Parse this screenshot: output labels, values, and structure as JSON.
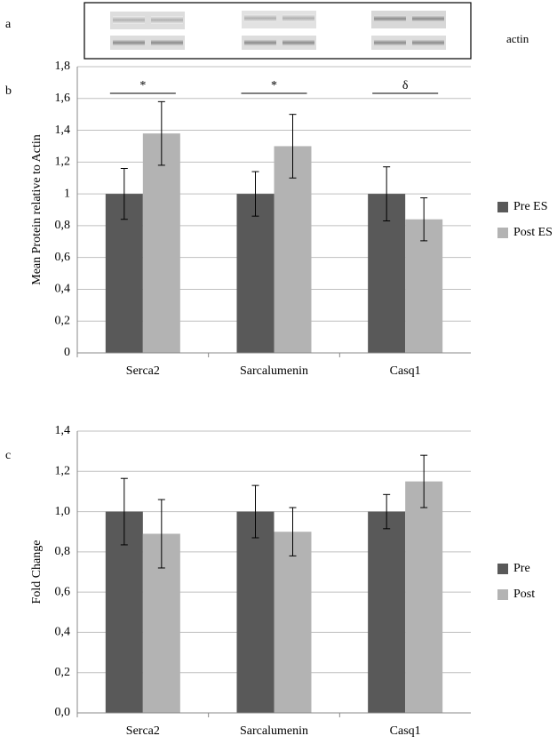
{
  "panel_a": {
    "label": "a",
    "annotation": "actin"
  },
  "chart_data": [
    {
      "type": "bar",
      "label": "b",
      "y_label": "Mean Protein relative to Actin",
      "categories": [
        "Serca2",
        "Sarcalumenin",
        "Casq1"
      ],
      "annotations": [
        "*",
        "*",
        "δ"
      ],
      "series": [
        {
          "name": "Pre ES",
          "color": "#595959",
          "values": [
            1,
            1,
            1
          ],
          "errors": [
            0.16,
            0.14,
            0.17
          ]
        },
        {
          "name": "Post ES",
          "color": "#b3b3b3",
          "values": [
            1.38,
            1.3,
            0.84
          ],
          "errors": [
            0.2,
            0.2,
            0.135
          ]
        }
      ],
      "ylim": [
        0,
        1.8
      ],
      "yticks": [
        0,
        {
          "value": 0.2,
          "label": "0,2"
        },
        {
          "value": 0.4,
          "label": "0,4"
        },
        {
          "value": 0.6,
          "label": "0,6"
        },
        {
          "value": 0.8,
          "label": "0,8"
        },
        1,
        {
          "value": 1.2,
          "label": "1,2"
        },
        {
          "value": 1.4,
          "label": "1,4"
        },
        {
          "value": 1.6,
          "label": "1,6"
        },
        {
          "value": 1.8,
          "label": "1,8"
        }
      ],
      "grid": true,
      "legend": "right"
    },
    {
      "type": "bar",
      "label": "c",
      "y_label": "Fold Change",
      "categories": [
        "Serca2",
        "Sarcalumenin",
        "Casq1"
      ],
      "series": [
        {
          "name": "Pre",
          "color": "#595959",
          "values": [
            1,
            1,
            1
          ],
          "errors": [
            0.165,
            0.13,
            0.085
          ]
        },
        {
          "name": "Post",
          "color": "#b3b3b3",
          "values": [
            0.89,
            0.9,
            1.15
          ],
          "errors": [
            0.17,
            0.12,
            0.13
          ]
        }
      ],
      "ylim": [
        0,
        1.4
      ],
      "yticks": [
        {
          "value": 0,
          "label": "0,0"
        },
        {
          "value": 0.2,
          "label": "0,2"
        },
        {
          "value": 0.4,
          "label": "0,4"
        },
        {
          "value": 0.6,
          "label": "0,6"
        },
        {
          "value": 0.8,
          "label": "0,8"
        },
        {
          "value": 1,
          "label": "1,0"
        },
        {
          "value": 1.2,
          "label": "1,2"
        },
        {
          "value": 1.4,
          "label": "1,4"
        }
      ],
      "grid": true,
      "legend": "right"
    }
  ]
}
